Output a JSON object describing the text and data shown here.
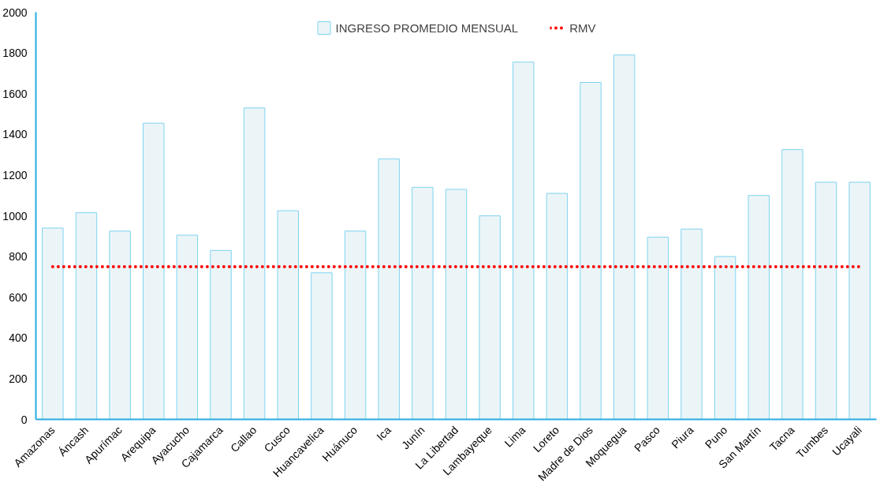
{
  "chart_data": {
    "type": "bar",
    "categories": [
      "Amazonas",
      "Áncash",
      "Apurímac",
      "Arequipa",
      "Ayacucho",
      "Cajamarca",
      "Callao",
      "Cusco",
      "Huancavelica",
      "Huánuco",
      "Ica",
      "Junín",
      "La Libertad",
      "Lambayeque",
      "Lima",
      "Loreto",
      "Madre de Dios",
      "Moquegua",
      "Pasco",
      "Piura",
      "Puno",
      "San Martín",
      "Tacna",
      "Tumbes",
      "Ucayali"
    ],
    "series": [
      {
        "name": "INGRESO PROMEDIO MENSUAL",
        "color": "#ebf5f8",
        "values": [
          940,
          1015,
          925,
          1455,
          905,
          830,
          1530,
          1025,
          720,
          925,
          1280,
          1140,
          1130,
          1000,
          1755,
          1110,
          1655,
          1790,
          895,
          935,
          800,
          1100,
          1325,
          1165,
          1165
        ]
      },
      {
        "name": "RMV",
        "color": "#ff0000",
        "type": "line",
        "line_style": "dotted",
        "values": [
          750,
          750,
          750,
          750,
          750,
          750,
          750,
          750,
          750,
          750,
          750,
          750,
          750,
          750,
          750,
          750,
          750,
          750,
          750,
          750,
          750,
          750,
          750,
          750,
          750
        ]
      }
    ],
    "ylim": [
      0,
      2000
    ],
    "yticks": [
      0,
      200,
      400,
      600,
      800,
      1000,
      1200,
      1400,
      1600,
      1800,
      2000
    ],
    "grid": false,
    "legend": "top"
  }
}
